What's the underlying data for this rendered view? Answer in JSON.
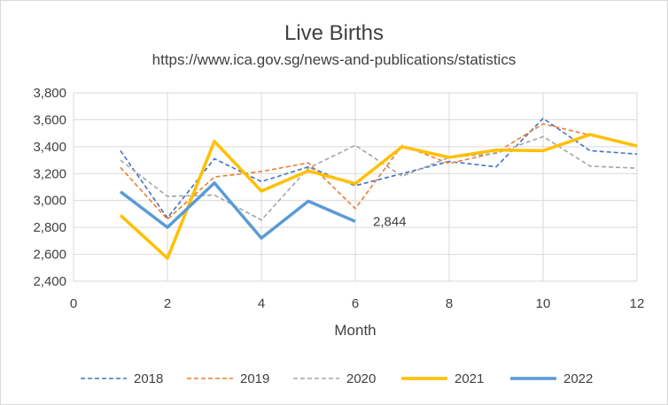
{
  "chart_data": {
    "type": "line",
    "title": "Live Births",
    "subtitle": "https://www.ica.gov.sg/news-and-publications/statistics",
    "xlabel": "Month",
    "ylabel": "",
    "xlim": [
      0,
      12
    ],
    "ylim": [
      2400,
      3800
    ],
    "x_ticks": [
      "0",
      "2",
      "4",
      "6",
      "8",
      "10",
      "12"
    ],
    "y_ticks": [
      "2,400",
      "2,600",
      "2,800",
      "3,000",
      "3,200",
      "3,400",
      "3,600",
      "3,800"
    ],
    "grid": true,
    "legend_position": "bottom",
    "series": [
      {
        "name": "2018",
        "color": "#4472C4",
        "style": "dashed",
        "x": [
          1,
          2,
          3,
          4,
          5,
          6,
          7,
          8,
          9,
          10,
          11,
          12
        ],
        "values": [
          3370,
          2870,
          3310,
          3140,
          3250,
          3110,
          3200,
          3290,
          3250,
          3610,
          3370,
          3345
        ]
      },
      {
        "name": "2019",
        "color": "#ED7D31",
        "style": "dashed",
        "x": [
          1,
          2,
          3,
          4,
          5,
          6,
          7,
          8,
          9,
          10,
          11,
          12
        ],
        "values": [
          3245,
          2860,
          3175,
          3215,
          3280,
          2940,
          3410,
          3275,
          3355,
          3570,
          3485,
          3400
        ]
      },
      {
        "name": "2020",
        "color": "#A5A5A5",
        "style": "dashed",
        "x": [
          1,
          2,
          3,
          4,
          5,
          6,
          7,
          8,
          9,
          10,
          11,
          12
        ],
        "values": [
          3300,
          3030,
          3040,
          2855,
          3240,
          3410,
          3180,
          3320,
          3350,
          3475,
          3255,
          3240
        ]
      },
      {
        "name": "2021",
        "color": "#FFC000",
        "style": "solid",
        "x": [
          1,
          2,
          3,
          4,
          5,
          6,
          7,
          8,
          9,
          10,
          11,
          12
        ],
        "values": [
          2890,
          2570,
          3440,
          3070,
          3220,
          3125,
          3400,
          3320,
          3375,
          3370,
          3490,
          3405
        ]
      },
      {
        "name": "2022",
        "color": "#5B9BD5",
        "style": "solid",
        "x": [
          1,
          2,
          3,
          4,
          5,
          6
        ],
        "values": [
          3065,
          2800,
          3130,
          2720,
          2995,
          2844
        ]
      }
    ],
    "annotations": [
      {
        "text": "2,844",
        "series": "2022",
        "x": 6,
        "y": 2844
      }
    ]
  }
}
